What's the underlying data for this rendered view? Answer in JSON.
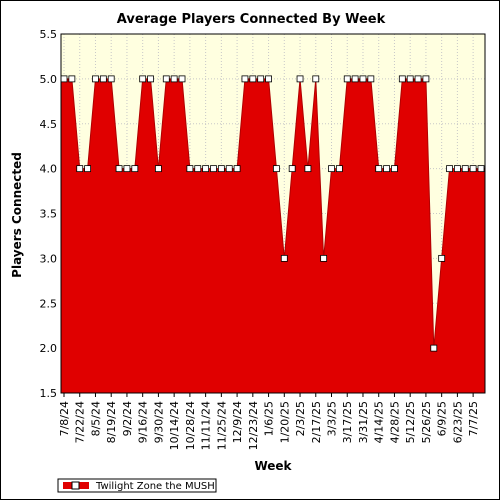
{
  "chart_data": {
    "type": "area",
    "title": "Average Players Connected By Week",
    "xlabel": "Week",
    "ylabel": "Players Connected",
    "ylim": [
      1.5,
      5.5
    ],
    "yticks": [
      "1.5",
      "2.0",
      "2.5",
      "3.0",
      "3.5",
      "4.0",
      "4.5",
      "5.0",
      "5.5"
    ],
    "grid": true,
    "legend_position": "bottom-left",
    "colors": {
      "fill": "#e00000",
      "plot_background": "#ffffe0",
      "marker_fill": "#ffffff",
      "grid": "#c8c8c8"
    },
    "x_tick_labels": [
      "7/8/24",
      "7/22/24",
      "8/5/24",
      "8/19/24",
      "9/2/24",
      "9/16/24",
      "9/30/24",
      "10/14/24",
      "10/28/24",
      "11/11/24",
      "11/25/24",
      "12/9/24",
      "12/23/24",
      "1/6/25",
      "1/20/25",
      "2/3/25",
      "2/17/25",
      "3/3/25",
      "3/17/25",
      "3/31/25",
      "4/14/25",
      "4/28/25",
      "5/12/25",
      "5/26/25",
      "6/9/25",
      "6/23/25",
      "7/7/25"
    ],
    "series": [
      {
        "name": "Twilight Zone the MUSH",
        "values": [
          5,
          5,
          4,
          4,
          5,
          5,
          5,
          4,
          4,
          4,
          5,
          5,
          4,
          5,
          5,
          5,
          4,
          4,
          4,
          4,
          4,
          4,
          4,
          5,
          5,
          5,
          5,
          4,
          3,
          4,
          5,
          4,
          5,
          3,
          4,
          4,
          5,
          5,
          5,
          5,
          4,
          4,
          4,
          5,
          5,
          5,
          5,
          2,
          3,
          4,
          4,
          4,
          4,
          4
        ]
      }
    ]
  }
}
